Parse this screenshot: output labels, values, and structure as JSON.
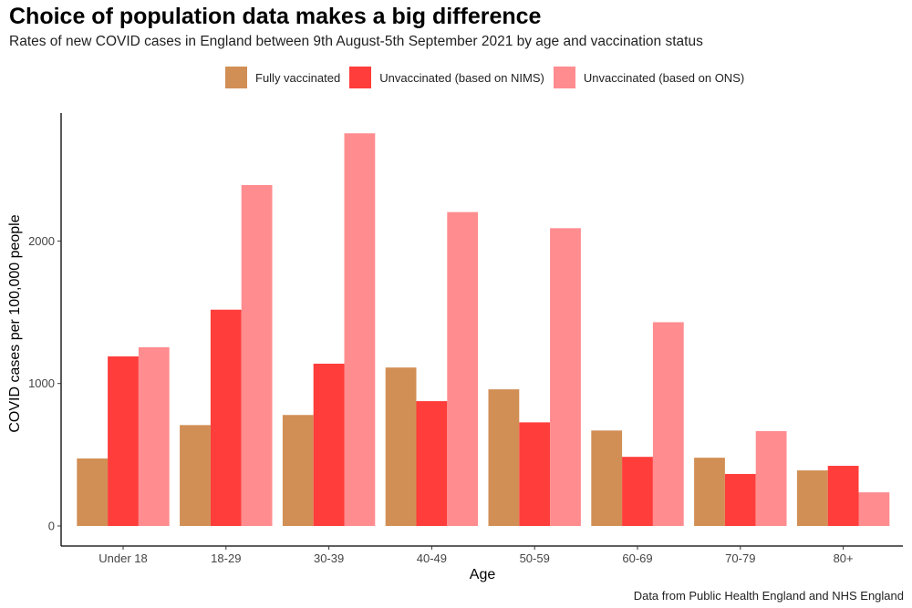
{
  "chart_data": {
    "type": "bar",
    "title": "Choice of population data makes a big difference",
    "subtitle": "Rates of new COVID cases in England between 9th August-5th September 2021 by age and vaccination status",
    "xlabel": "Age",
    "ylabel": "COVID cases per 100,000 people",
    "caption": "Data from Public Health England and NHS England",
    "categories": [
      "Under 18",
      "18-29",
      "30-39",
      "40-49",
      "50-59",
      "60-69",
      "70-79",
      "80+"
    ],
    "series": [
      {
        "name": "Fully vaccinated",
        "color": "#d18f55",
        "values": [
          474,
          708,
          779,
          1112,
          959,
          670,
          479,
          390
        ]
      },
      {
        "name": "Unvaccinated (based on NIMS)",
        "color": "#ff3d3a",
        "values": [
          1190,
          1518,
          1139,
          876,
          727,
          485,
          365,
          422
        ]
      },
      {
        "name": "Unvaccinated (based on ONS)",
        "color": "#ff8c8f",
        "values": [
          1254,
          2393,
          2756,
          2203,
          2090,
          1430,
          666,
          236
        ]
      }
    ],
    "yticks": [
      0,
      1000,
      2000
    ],
    "ylim": [
      0,
      2900
    ],
    "grid": false,
    "legend_position": "top"
  }
}
